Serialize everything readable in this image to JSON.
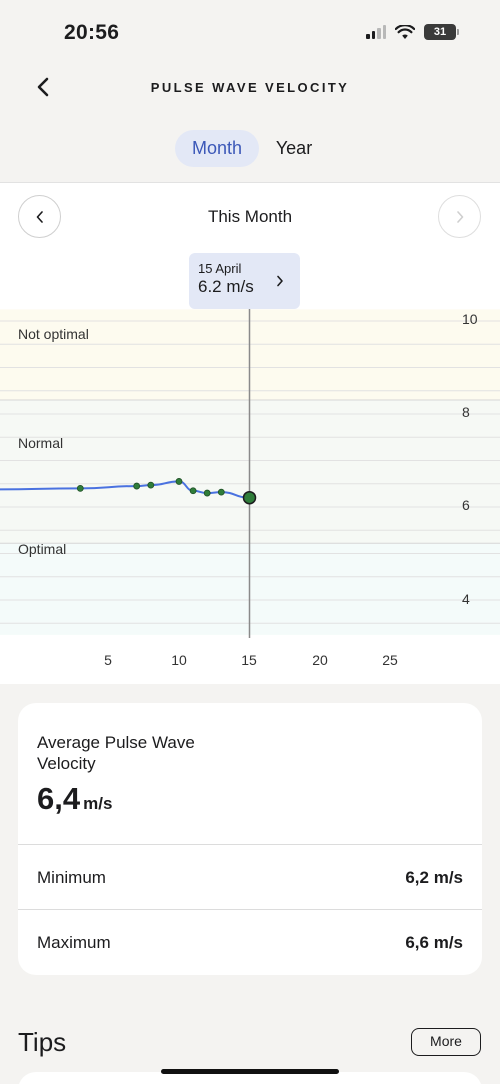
{
  "status_bar": {
    "time": "20:56",
    "battery": "31"
  },
  "nav": {
    "title": "PULSE WAVE VELOCITY",
    "back_icon": "chevron-left-icon"
  },
  "range_tabs": [
    {
      "label": "Month",
      "selected": true
    },
    {
      "label": "Year",
      "selected": false
    }
  ],
  "period": {
    "label": "This Month",
    "prev_icon": "chevron-left-icon",
    "next_icon": "chevron-right-icon"
  },
  "tooltip": {
    "date": "15 April",
    "value": "6.2 m/s"
  },
  "zones": [
    {
      "label": "Not optimal",
      "color": "#fdfbef"
    },
    {
      "label": "Normal",
      "color": "#f6f9f5"
    },
    {
      "label": "Optimal",
      "color": "#f4fbfa"
    }
  ],
  "chart_data": {
    "type": "line",
    "x_ticks": [
      "5",
      "10",
      "15",
      "20",
      "25"
    ],
    "y_ticks": [
      "10",
      "8",
      "6",
      "4"
    ],
    "series": [
      {
        "x": [
          3,
          7,
          8,
          10,
          11,
          12,
          13,
          15
        ],
        "y": [
          6.4,
          6.45,
          6.47,
          6.55,
          6.35,
          6.3,
          6.32,
          6.2
        ]
      }
    ],
    "selected_point": {
      "x": 15,
      "y": 6.2
    },
    "line_color": "#4a72e0",
    "point_color": "#2f7d3a"
  },
  "stats": {
    "average_title": "Average Pulse Wave Velocity",
    "average_value": "6,4",
    "average_unit": "m/s",
    "rows": [
      {
        "label": "Minimum",
        "value": "6,2 m/s"
      },
      {
        "label": "Maximum",
        "value": "6,6 m/s"
      }
    ]
  },
  "tips": {
    "title": "Tips",
    "more_label": "More"
  }
}
